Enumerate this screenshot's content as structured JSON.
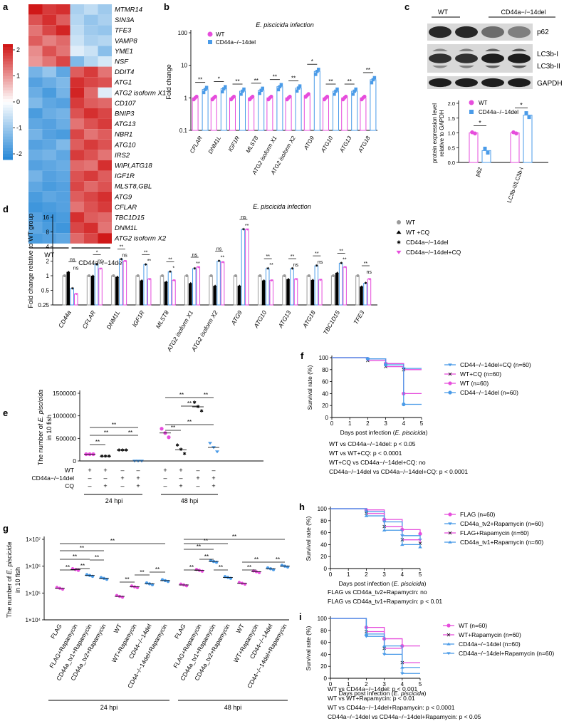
{
  "panels": [
    "a",
    "b",
    "c",
    "d",
    "e",
    "f",
    "g",
    "h",
    "i"
  ],
  "colors": {
    "wt": "#e64ddc",
    "ko": "#4a9be8",
    "grey": "#9a9a9a",
    "black": "#000000",
    "heat_hi": "#d01818",
    "heat_lo": "#2a8ad8"
  },
  "heatmap": {
    "genes": [
      "MTMR14",
      "SIN3A",
      "TFE3",
      "VAMP8",
      "YME1",
      "NSF",
      "DDIT4",
      "ATG1",
      "ATG2 isoform X1",
      "CD107",
      "BNIP3",
      "ATG13",
      "NBR1",
      "ATG10",
      "IRS2",
      "WIPI,ATG18",
      "IGF1R",
      "MLST8,GBL",
      "ATG9",
      "CFLAR",
      "TBC1D15",
      "DNM1L",
      "ATG2 isoform X2"
    ],
    "group_wt": "WT",
    "group_ko": "CD44a−/−14del",
    "scale_labels": [
      "2",
      "1",
      "0",
      "-1",
      "-2"
    ],
    "values": [
      [
        2.0,
        1.7,
        1.8,
        -0.8,
        -0.6,
        -0.9
      ],
      [
        1.5,
        1.8,
        1.4,
        -0.7,
        -1.0,
        -0.8
      ],
      [
        1.2,
        1.6,
        1.9,
        -0.6,
        -0.9,
        -1.0
      ],
      [
        1.4,
        1.1,
        1.3,
        -0.5,
        -0.8,
        -0.7
      ],
      [
        1.0,
        1.5,
        1.2,
        -0.3,
        -0.5,
        -1.1
      ],
      [
        0.9,
        1.2,
        1.6,
        -1.2,
        -0.7,
        -0.4
      ],
      [
        -1.3,
        -1.0,
        -1.5,
        1.4,
        1.7,
        1.2
      ],
      [
        -1.6,
        -1.4,
        -1.2,
        1.8,
        1.6,
        1.5
      ],
      [
        -1.4,
        -1.7,
        -1.3,
        1.9,
        1.3,
        -0.3
      ],
      [
        -1.2,
        -1.5,
        -1.6,
        1.7,
        1.4,
        1.3
      ],
      [
        -1.7,
        -1.4,
        -1.3,
        1.5,
        1.8,
        1.6
      ],
      [
        -1.5,
        -1.6,
        -1.4,
        1.2,
        1.5,
        1.7
      ],
      [
        -1.3,
        -1.6,
        -1.7,
        1.6,
        1.2,
        1.4
      ],
      [
        -1.6,
        -1.5,
        -1.2,
        1.4,
        1.7,
        1.5
      ],
      [
        -1.4,
        -1.3,
        -1.5,
        1.7,
        1.5,
        1.2
      ],
      [
        -1.6,
        -1.5,
        -1.4,
        1.3,
        1.2,
        1.8
      ],
      [
        -1.3,
        -1.6,
        -1.5,
        1.5,
        1.7,
        1.4
      ],
      [
        -1.5,
        -1.7,
        -1.6,
        1.6,
        1.3,
        1.5
      ],
      [
        -1.7,
        -1.5,
        -1.6,
        1.4,
        1.6,
        1.8
      ],
      [
        -1.8,
        -1.7,
        -1.6,
        1.2,
        1.5,
        1.7
      ],
      [
        -1.6,
        -1.8,
        -1.7,
        1.8,
        1.4,
        1.3
      ],
      [
        -1.5,
        -1.7,
        -1.8,
        1.6,
        1.8,
        1.2
      ],
      [
        -1.7,
        -1.6,
        -1.5,
        1.3,
        1.6,
        2.0
      ]
    ]
  },
  "panel_b": {
    "title": "E. piscicida infection",
    "ylabel": "Fold change",
    "yticks": [
      "100",
      "10",
      "1",
      "0.1"
    ],
    "legend": [
      "WT",
      "CD44a−/−14del"
    ],
    "categories": [
      "CFLAR",
      "DNM1L",
      "IGF1R",
      "MLST8",
      "ATG2 isoform X1",
      "ATG2 isoform X2",
      "ATG9",
      "ATG10",
      "ATG13",
      "ATG18"
    ],
    "wt_values": [
      1,
      1,
      1,
      1,
      1,
      1,
      1.2,
      1,
      1,
      1
    ],
    "ko_values": [
      1.8,
      1.9,
      1.6,
      1.7,
      2.2,
      2.0,
      6.5,
      1.6,
      1.6,
      3.6
    ],
    "sig": [
      "**",
      "*",
      "**",
      "**",
      "**",
      "**",
      "*",
      "**",
      "**",
      "**"
    ]
  },
  "panel_c": {
    "wt_label": "WT",
    "ko_label": "CD44a−/−14del",
    "bands": [
      "p62",
      "LC3b-I",
      "LC3b-II",
      "GAPDH"
    ],
    "ylabel_line1": "protein expression level",
    "ylabel_line2": "relative to GAPDH",
    "yticks": [
      "0.0",
      "0.5",
      "1.0",
      "1.5",
      "2.0"
    ],
    "legend": [
      "WT",
      "CD44a−/−14del"
    ],
    "categories": [
      "p62",
      "LC3b-II/LC3b-I"
    ],
    "wt_values": [
      1.0,
      1.0
    ],
    "ko_values": [
      0.4,
      1.6
    ],
    "sig": [
      "*",
      "*"
    ]
  },
  "panel_d": {
    "title": "E. piscicida infection",
    "ylabel": "Fold change relative to WT group",
    "yticks": [
      "16",
      "8",
      "4",
      "2",
      "1",
      "0.5",
      "0.25"
    ],
    "legend": [
      "WT",
      "WT +CQ",
      "CD44a−/−14del",
      "CD44a−/−14del+CQ"
    ],
    "categories": [
      "CD44a",
      "CFLAR",
      "DNM1L",
      "IGF1R",
      "MLST8",
      "ATG2 isoform X1",
      "ATG2 isoform X2",
      "ATG9",
      "ATG10",
      "ATG13",
      "ATG18",
      "TBC1D15",
      "TFE3"
    ],
    "series": [
      {
        "values": [
          1,
          1,
          1,
          1,
          1,
          1,
          1,
          1,
          1,
          1,
          1,
          1,
          1
        ]
      },
      {
        "values": [
          1.2,
          1.0,
          0.95,
          0.8,
          0.75,
          0.7,
          0.62,
          0.62,
          0.8,
          0.85,
          0.82,
          1.15,
          0.6
        ]
      },
      {
        "values": [
          0.55,
          1.7,
          2.2,
          1.7,
          1.2,
          1.4,
          2.0,
          9.0,
          1.4,
          1.4,
          1.6,
          1.8,
          0.7
        ]
      },
      {
        "values": [
          0.42,
          1.4,
          2.0,
          0.85,
          0.8,
          1.5,
          1.9,
          9.0,
          0.8,
          0.85,
          0.82,
          1.5,
          0.85
        ]
      }
    ],
    "marks_top": [
      "ns",
      "*",
      "**",
      "**",
      "**",
      "ns",
      "ns",
      "ns",
      "**",
      "**",
      "**",
      "**",
      "**"
    ],
    "marks_bottom": [
      "ns",
      "ns",
      "ns",
      "**",
      "*",
      "**",
      "**",
      "**",
      "**",
      "ns",
      "ns",
      "**",
      "ns"
    ]
  },
  "panel_e": {
    "ylabel_line1": "The number of ",
    "ylabel_italic": "E. piscicida",
    "ylabel_line2": "in 10 fish",
    "yticks": [
      "1500000",
      "1000000",
      "500000",
      "0"
    ],
    "row_labels": [
      "WT",
      "CD44a−/−14del",
      "CQ"
    ],
    "plus": "+",
    "minus": "–",
    "groups_24": [
      150000,
      100000,
      240000,
      0
    ],
    "groups_48": [
      620000,
      250000,
      1200000,
      300000
    ],
    "time_labels": [
      "24 hpi",
      "48 hpi"
    ],
    "sig": "**"
  },
  "panel_f": {
    "ylabel": "Survival rate (%)",
    "xlabel": "Days post infection (",
    "xlabel_italic": "E. piscicida",
    "xlabel_end": ")",
    "yticks": [
      "100",
      "80",
      "60",
      "40",
      "20",
      "0"
    ],
    "xticks": [
      "0",
      "1",
      "2",
      "3",
      "4",
      "5"
    ],
    "legend": [
      "CD44−/−14del+CQ (n=60)",
      "WT+CQ (n=60)",
      "WT (n=60)",
      "CD44−/−14del (n=60)"
    ],
    "stats": [
      "WT vs CD44a−/−14del:  p < 0.05",
      "WT vs WT+CQ:  p < 0.0001",
      "WT+CQ vs CD44a−/−14del+CQ: no",
      "CD44a−/−14del vs CD44a−/−14del+CQ:  p < 0.0001"
    ]
  },
  "panel_g": {
    "ylabel_line1": "The number of ",
    "ylabel_italic": "E. piscicida",
    "ylabel_line2": "in 10 fish",
    "yticks": [
      "1×10⁷",
      "1×10⁶",
      "1×10⁵",
      "1×10⁴"
    ],
    "categories_24": [
      "FLAG",
      "FLAG+Rapamycin",
      "CD44a_tv1+Rapamycin",
      "CD44a_tv2+Rapamycin",
      "WT",
      "WT+Rapamycin",
      "CD44−/−14del",
      "CD44−/−14del+Rapamycin"
    ],
    "categories_48": [
      "FLAG",
      "FLAG+Rapamycin",
      "CD44a_tv1+Rapamycin",
      "CD44a_tv2+Rapamycin",
      "WT",
      "WT+Rapamycin",
      "CD44−/−14del",
      "CD44−/−14del+Rapamycin"
    ],
    "values_24": [
      150000,
      750000,
      450000,
      350000,
      75000,
      170000,
      220000,
      290000
    ],
    "values_48": [
      200000,
      700000,
      1500000,
      380000,
      230000,
      620000,
      800000,
      1000000
    ],
    "time_labels": [
      "24 hpi",
      "48 hpi"
    ],
    "sig": "**"
  },
  "panel_h": {
    "ylabel": "Survival rate (%)",
    "xlabel": "Days post infection (",
    "xlabel_italic": "E. piscicida",
    "xlabel_end": ")",
    "yticks": [
      "100",
      "80",
      "60",
      "40",
      "20",
      "0"
    ],
    "xticks": [
      "0",
      "1",
      "2",
      "3",
      "4",
      "5"
    ],
    "legend": [
      "FLAG (n=60)",
      "CD44a_tv2+Rapamycin (n=60)",
      "FLAG+Rapamycin (n=60)",
      "CD44a_tv1+Rapamycin (n=60)"
    ],
    "stats": [
      "FLAG vs CD44a_tv2+Rapamycin: no",
      "FLAG vs CD44a_tv1+Rapamycin:  p < 0.01"
    ]
  },
  "panel_i": {
    "ylabel": "Survival rate (%)",
    "xlabel": "Days post infection (",
    "xlabel_italic": "E. piscicida",
    "xlabel_end": ")",
    "yticks": [
      "100",
      "80",
      "60",
      "40",
      "20",
      "0"
    ],
    "xticks": [
      "0",
      "1",
      "2",
      "3",
      "4",
      "5"
    ],
    "legend": [
      "WT (n=60)",
      "WT+Rapamycin (n=60)",
      "CD44a−/−14del (n=60)",
      "CD44a−/−14del+Rapamycin (n=60)"
    ],
    "stats": [
      "WT vs CD44a−/−14del:  p < 0.001",
      "WT vs WT+Rapamycin:  p < 0.01",
      "WT vs CD44a−/−14del+Rapamycin:  p < 0.0001",
      "CD44a−/−14del vs CD44a−/−14del+Rapamycin:  p < 0.05"
    ]
  }
}
